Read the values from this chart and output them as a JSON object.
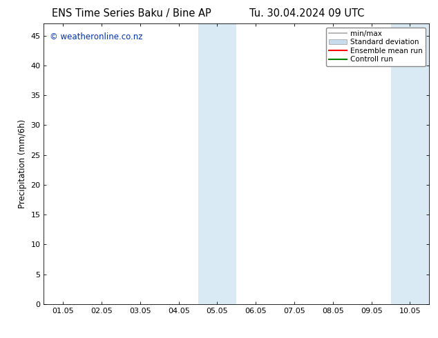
{
  "title_left": "ENS Time Series Baku / Bine AP",
  "title_right": "Tu. 30.04.2024 09 UTC",
  "ylabel": "Precipitation (mm/6h)",
  "watermark": "© weatheronline.co.nz",
  "x_tick_labels": [
    "01.05",
    "02.05",
    "03.05",
    "04.05",
    "05.05",
    "06.05",
    "07.05",
    "08.05",
    "09.05",
    "10.05"
  ],
  "x_tick_positions": [
    0,
    1,
    2,
    3,
    4,
    5,
    6,
    7,
    8,
    9
  ],
  "ylim": [
    0,
    47
  ],
  "yticks": [
    0,
    5,
    10,
    15,
    20,
    25,
    30,
    35,
    40,
    45
  ],
  "shaded_regions": [
    {
      "xmin": 3.5,
      "xmax": 4.5,
      "color": "#daeaf5"
    },
    {
      "xmin": 8.5,
      "xmax": 9.5,
      "color": "#daeaf5"
    }
  ],
  "legend_entries": [
    {
      "label": "min/max",
      "color": "#aaaaaa",
      "lw": 1.2,
      "style": "minmax"
    },
    {
      "label": "Standard deviation",
      "color": "#c8dced",
      "lw": 8,
      "style": "fill"
    },
    {
      "label": "Ensemble mean run",
      "color": "red",
      "lw": 1.5,
      "style": "line"
    },
    {
      "label": "Controll run",
      "color": "green",
      "lw": 1.5,
      "style": "line"
    }
  ],
  "background_color": "#ffffff",
  "plot_bg_color": "#ffffff",
  "title_fontsize": 10.5,
  "watermark_color": "#0033aa",
  "watermark_fontsize": 8.5,
  "tick_fontsize": 8,
  "ylabel_fontsize": 8.5
}
